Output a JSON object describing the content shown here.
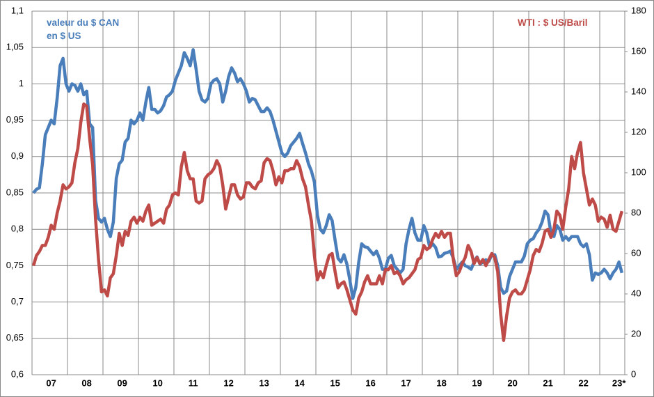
{
  "chart_data": {
    "type": "line",
    "categories": [
      null,
      null,
      null,
      null,
      null,
      null,
      "07",
      null,
      null,
      null,
      null,
      null,
      null,
      null,
      null,
      null,
      null,
      null,
      "08",
      null,
      null,
      null,
      null,
      null,
      null,
      null,
      null,
      null,
      null,
      null,
      "09",
      null,
      null,
      null,
      null,
      null,
      null,
      null,
      null,
      null,
      null,
      null,
      "10",
      null,
      null,
      null,
      null,
      null,
      null,
      null,
      null,
      null,
      null,
      null,
      "11",
      null,
      null,
      null,
      null,
      null,
      null,
      null,
      null,
      null,
      null,
      null,
      "12",
      null,
      null,
      null,
      null,
      null,
      null,
      null,
      null,
      null,
      null,
      null,
      "13",
      null,
      null,
      null,
      null,
      null,
      null,
      null,
      null,
      null,
      null,
      null,
      "14",
      null,
      null,
      null,
      null,
      null,
      null,
      null,
      null,
      null,
      null,
      null,
      "15",
      null,
      null,
      null,
      null,
      null,
      null,
      null,
      null,
      null,
      null,
      null,
      "16",
      null,
      null,
      null,
      null,
      null,
      null,
      null,
      null,
      null,
      null,
      null,
      "17",
      null,
      null,
      null,
      null,
      null,
      null,
      null,
      null,
      null,
      null,
      null,
      "18",
      null,
      null,
      null,
      null,
      null,
      null,
      null,
      null,
      null,
      null,
      null,
      "19",
      null,
      null,
      null,
      null,
      null,
      null,
      null,
      null,
      null,
      null,
      null,
      "20",
      null,
      null,
      null,
      null,
      null,
      null,
      null,
      null,
      null,
      null,
      null,
      "21",
      null,
      null,
      null,
      null,
      null,
      null,
      null,
      null,
      null,
      null,
      null,
      "22",
      null,
      null,
      null,
      null,
      null,
      null,
      null,
      null,
      null,
      null,
      null,
      "23*",
      null
    ],
    "series": [
      {
        "name": "valeur du $ CAN en $ US",
        "color": "#4a7ebb",
        "values": [
          0.85,
          0.855,
          0.857,
          0.89,
          0.93,
          0.94,
          0.95,
          0.945,
          0.98,
          1.025,
          1.035,
          1.0,
          0.99,
          1.0,
          0.998,
          0.99,
          1.0,
          0.985,
          0.99,
          0.945,
          0.94,
          0.84,
          0.815,
          0.81,
          0.815,
          0.8,
          0.79,
          0.81,
          0.87,
          0.89,
          0.895,
          0.92,
          0.925,
          0.95,
          0.945,
          0.95,
          0.96,
          0.95,
          0.975,
          0.995,
          0.965,
          0.965,
          0.96,
          0.963,
          0.97,
          0.982,
          0.985,
          0.99,
          1.005,
          1.015,
          1.025,
          1.043,
          1.035,
          1.025,
          1.047,
          1.02,
          0.99,
          0.978,
          0.975,
          0.98,
          1.0,
          1.005,
          1.007,
          1.0,
          0.975,
          0.99,
          1.01,
          1.022,
          1.015,
          1.003,
          1.007,
          1.0,
          0.99,
          0.975,
          0.98,
          0.978,
          0.97,
          0.962,
          0.962,
          0.967,
          0.962,
          0.95,
          0.935,
          0.92,
          0.905,
          0.9,
          0.905,
          0.915,
          0.92,
          0.925,
          0.932,
          0.918,
          0.905,
          0.89,
          0.88,
          0.865,
          0.82,
          0.8,
          0.795,
          0.805,
          0.82,
          0.812,
          0.785,
          0.76,
          0.755,
          0.765,
          0.752,
          0.73,
          0.705,
          0.72,
          0.755,
          0.78,
          0.776,
          0.775,
          0.77,
          0.765,
          0.77,
          0.76,
          0.745,
          0.745,
          0.76,
          0.764,
          0.75,
          0.745,
          0.74,
          0.745,
          0.78,
          0.8,
          0.815,
          0.795,
          0.785,
          0.785,
          0.805,
          0.795,
          0.775,
          0.78,
          0.775,
          0.762,
          0.763,
          0.767,
          0.768,
          0.77,
          0.76,
          0.745,
          0.75,
          0.755,
          0.75,
          0.748,
          0.745,
          0.755,
          0.762,
          0.752,
          0.755,
          0.758,
          0.756,
          0.765,
          0.765,
          0.75,
          0.72,
          0.712,
          0.715,
          0.735,
          0.745,
          0.755,
          0.755,
          0.755,
          0.763,
          0.78,
          0.785,
          0.787,
          0.795,
          0.8,
          0.81,
          0.825,
          0.82,
          0.795,
          0.79,
          0.805,
          0.8,
          0.785,
          0.79,
          0.785,
          0.79,
          0.79,
          0.79,
          0.78,
          0.776,
          0.78,
          0.765,
          0.73,
          0.74,
          0.738,
          0.74,
          0.745,
          0.74,
          0.732,
          0.74,
          0.745,
          0.755,
          0.74
        ]
      },
      {
        "name": "WTI : $ US/Baril",
        "color": "#be4b48",
        "axis": "y2",
        "values": [
          54,
          59,
          61,
          64,
          64,
          68,
          74,
          72,
          80,
          86,
          94,
          92,
          93,
          95,
          105,
          112,
          125,
          134,
          133,
          117,
          104,
          77,
          57,
          41,
          42,
          39,
          48,
          50,
          59,
          70,
          64,
          71,
          69,
          76,
          78,
          75,
          78,
          76,
          81,
          84,
          74,
          75,
          76,
          77,
          75,
          82,
          84,
          89,
          90,
          89,
          103,
          110,
          101,
          97,
          97,
          86,
          85,
          86,
          97,
          99,
          100,
          102,
          106,
          103,
          94,
          82,
          88,
          94,
          94,
          89,
          87,
          88,
          95,
          95,
          93,
          92,
          95,
          96,
          105,
          107,
          106,
          101,
          94,
          98,
          95,
          101,
          101,
          102,
          102,
          106,
          103,
          97,
          93,
          84,
          76,
          59,
          47,
          51,
          48,
          54,
          59,
          60,
          51,
          43,
          45,
          46,
          42,
          37,
          32,
          30,
          38,
          41,
          46,
          49,
          45,
          45,
          45,
          49,
          45,
          52,
          52,
          54,
          50,
          51,
          49,
          45,
          47,
          48,
          50,
          52,
          57,
          58,
          64,
          62,
          63,
          67,
          70,
          68,
          71,
          68,
          70,
          70,
          57,
          49,
          51,
          55,
          58,
          64,
          61,
          55,
          58,
          55,
          57,
          54,
          57,
          60,
          58,
          51,
          30,
          17,
          29,
          38,
          41,
          42,
          40,
          40,
          42,
          47,
          52,
          59,
          62,
          61,
          65,
          71,
          72,
          68,
          72,
          81,
          79,
          72,
          83,
          92,
          108,
          102,
          110,
          115,
          100,
          92,
          84,
          87,
          84,
          76,
          78,
          77,
          73,
          79,
          72,
          71,
          76,
          81
        ]
      }
    ],
    "ylim": [
      0.6,
      1.1
    ],
    "yticks": [
      {
        "value": 0.6,
        "label": "0,6"
      },
      {
        "value": 0.65,
        "label": "0,65"
      },
      {
        "value": 0.7,
        "label": "0,7"
      },
      {
        "value": 0.75,
        "label": "0,75"
      },
      {
        "value": 0.8,
        "label": "0,8"
      },
      {
        "value": 0.85,
        "label": "0,85"
      },
      {
        "value": 0.9,
        "label": "0,9"
      },
      {
        "value": 0.95,
        "label": "0,95"
      },
      1,
      {
        "value": 1.05,
        "label": "1,05"
      },
      {
        "value": 1.1,
        "label": "1,1"
      }
    ],
    "y2lim": [
      0,
      180
    ],
    "y2ticks": [
      0,
      20,
      40,
      60,
      80,
      100,
      120,
      140,
      160,
      180
    ],
    "grid": true
  }
}
